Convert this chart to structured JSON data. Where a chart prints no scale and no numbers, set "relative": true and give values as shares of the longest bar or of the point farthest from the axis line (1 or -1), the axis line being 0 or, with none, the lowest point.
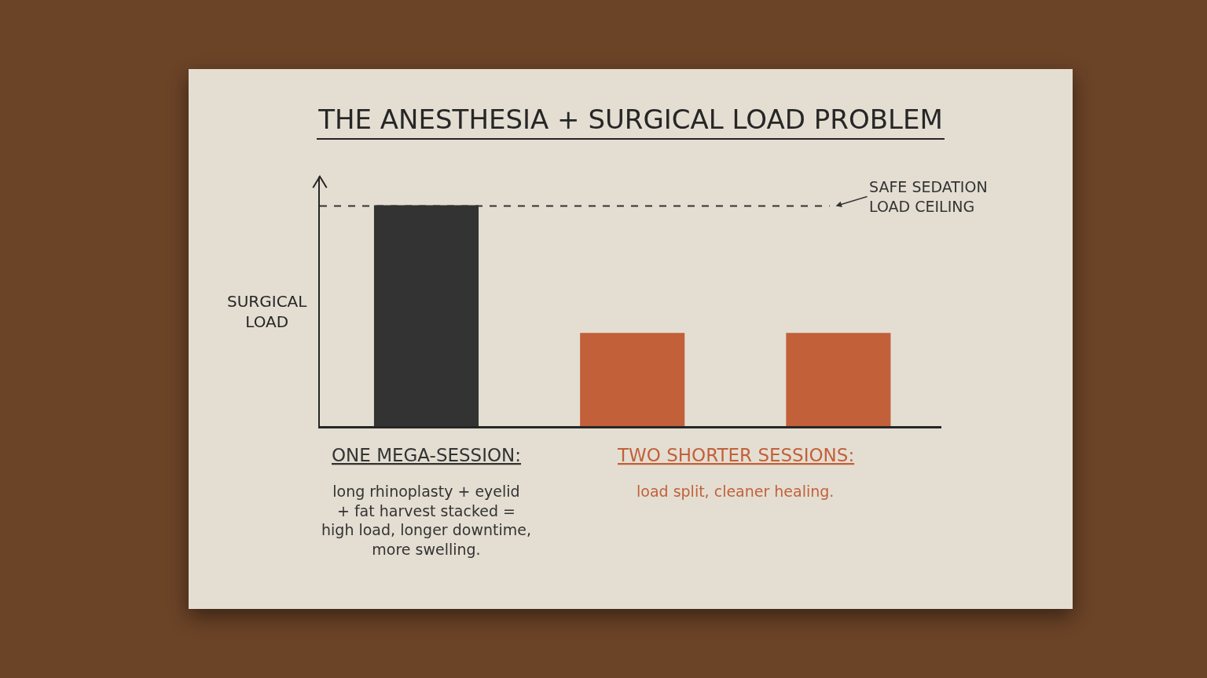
{
  "chart_data": {
    "type": "bar",
    "title": "THE ANESTHESIA + SURGICAL LOAD PROBLEM",
    "ylabel": "SURGICAL\nLOAD",
    "categories": [
      null,
      null,
      null
    ],
    "values": [
      1,
      0.42,
      0.42
    ],
    "colors": [
      "#333333",
      "#c2603a",
      "#c2603a"
    ],
    "relative": true,
    "ref_lines": [
      {
        "axis": "y",
        "value": 1,
        "label": "SAFE SEDATION\nLOAD CEILING",
        "color": "#333333",
        "line_style": "dashed"
      }
    ],
    "annotations": [
      "ONE MEGA-SESSION:",
      "long rhinoplasty + eyelid\n+ fat harvest stacked =\nhigh load, longer downtime,\nmore swelling.",
      "TWO SHORTER SESSIONS:",
      "load split, cleaner healing."
    ]
  }
}
